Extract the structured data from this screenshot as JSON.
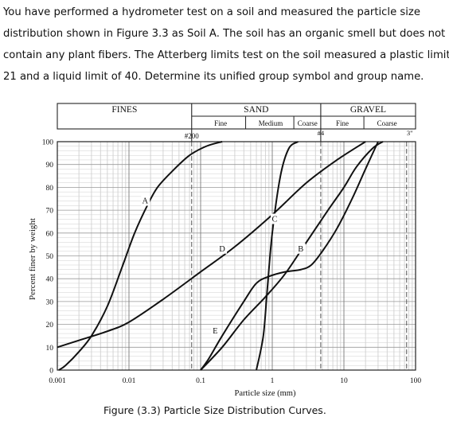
{
  "problem": {
    "lines": [
      "You have performed a hydrometer test on a soil and measured the particle size",
      "distribution shown in Figure 3.3 as Soil A. The soil has an organic smell but does not",
      "contain any plant fibers. The Atterberg limits test on the soil measured a plastic limit of",
      "21 and a liquid limit of 40. Determine its unified group symbol and group name."
    ]
  },
  "caption": "Figure (3.3) Particle Size Distribution Curves.",
  "chart_data": {
    "type": "line",
    "xscale": "log",
    "xlim": [
      0.001,
      100
    ],
    "ylim": [
      0,
      100
    ],
    "xlabel": "Particle size (mm)",
    "ylabel": "Percent finer by weight",
    "xticks": [
      "0.001",
      "0.01",
      "0.1",
      "1",
      "10",
      "100"
    ],
    "yticks": [
      "0",
      "10",
      "20",
      "30",
      "40",
      "50",
      "60",
      "70",
      "80",
      "90",
      "100"
    ],
    "header": {
      "fines": "FINES",
      "sand": "SAND",
      "gravel": "GRAVEL",
      "sand_sub": [
        "Fine",
        "Medium",
        "Coarse"
      ],
      "gravel_sub": [
        "Fine",
        "Coarse"
      ],
      "sieves": [
        "#200",
        "#4",
        "3\""
      ]
    },
    "series": [
      {
        "name": "A",
        "label_at": {
          "x": 0.0168,
          "y": 73
        },
        "points": [
          [
            0.00105,
            0
          ],
          [
            0.0013,
            2
          ],
          [
            0.002,
            8
          ],
          [
            0.003,
            15
          ],
          [
            0.005,
            28
          ],
          [
            0.008,
            45
          ],
          [
            0.012,
            60
          ],
          [
            0.018,
            72
          ],
          [
            0.025,
            80
          ],
          [
            0.04,
            87
          ],
          [
            0.07,
            94
          ],
          [
            0.12,
            98
          ],
          [
            0.2,
            100
          ]
        ]
      },
      {
        "name": "B",
        "label_at": {
          "x": 2.5,
          "y": 52
        },
        "points": [
          [
            0.1,
            0
          ],
          [
            0.13,
            5
          ],
          [
            0.2,
            15
          ],
          [
            0.4,
            30
          ],
          [
            0.6,
            38
          ],
          [
            0.9,
            41
          ],
          [
            1.5,
            43
          ],
          [
            2.5,
            44
          ],
          [
            3.5,
            46
          ],
          [
            5,
            52
          ],
          [
            8,
            62
          ],
          [
            13,
            75
          ],
          [
            20,
            88
          ],
          [
            30,
            100
          ]
        ]
      },
      {
        "name": "C",
        "label_at": {
          "x": 1.08,
          "y": 65
        },
        "points": [
          [
            0.6,
            0
          ],
          [
            0.75,
            15
          ],
          [
            0.85,
            35
          ],
          [
            1.0,
            60
          ],
          [
            1.3,
            85
          ],
          [
            1.7,
            97
          ],
          [
            2.3,
            100
          ]
        ]
      },
      {
        "name": "D",
        "label_at": {
          "x": 0.2,
          "y": 52
        },
        "points": [
          [
            0.001,
            10
          ],
          [
            0.002,
            13
          ],
          [
            0.005,
            17
          ],
          [
            0.01,
            21
          ],
          [
            0.03,
            31
          ],
          [
            0.1,
            43
          ],
          [
            0.3,
            54
          ],
          [
            1,
            68
          ],
          [
            3,
            82
          ],
          [
            8,
            92
          ],
          [
            20,
            100
          ]
        ]
      },
      {
        "name": "E",
        "label_at": {
          "x": 0.16,
          "y": 16
        },
        "points": [
          [
            0.1,
            0
          ],
          [
            0.2,
            10
          ],
          [
            0.4,
            22
          ],
          [
            0.8,
            32
          ],
          [
            1.5,
            42
          ],
          [
            3,
            56
          ],
          [
            6,
            70
          ],
          [
            10,
            80
          ],
          [
            15,
            89
          ],
          [
            25,
            97
          ],
          [
            35,
            100
          ]
        ]
      }
    ]
  }
}
